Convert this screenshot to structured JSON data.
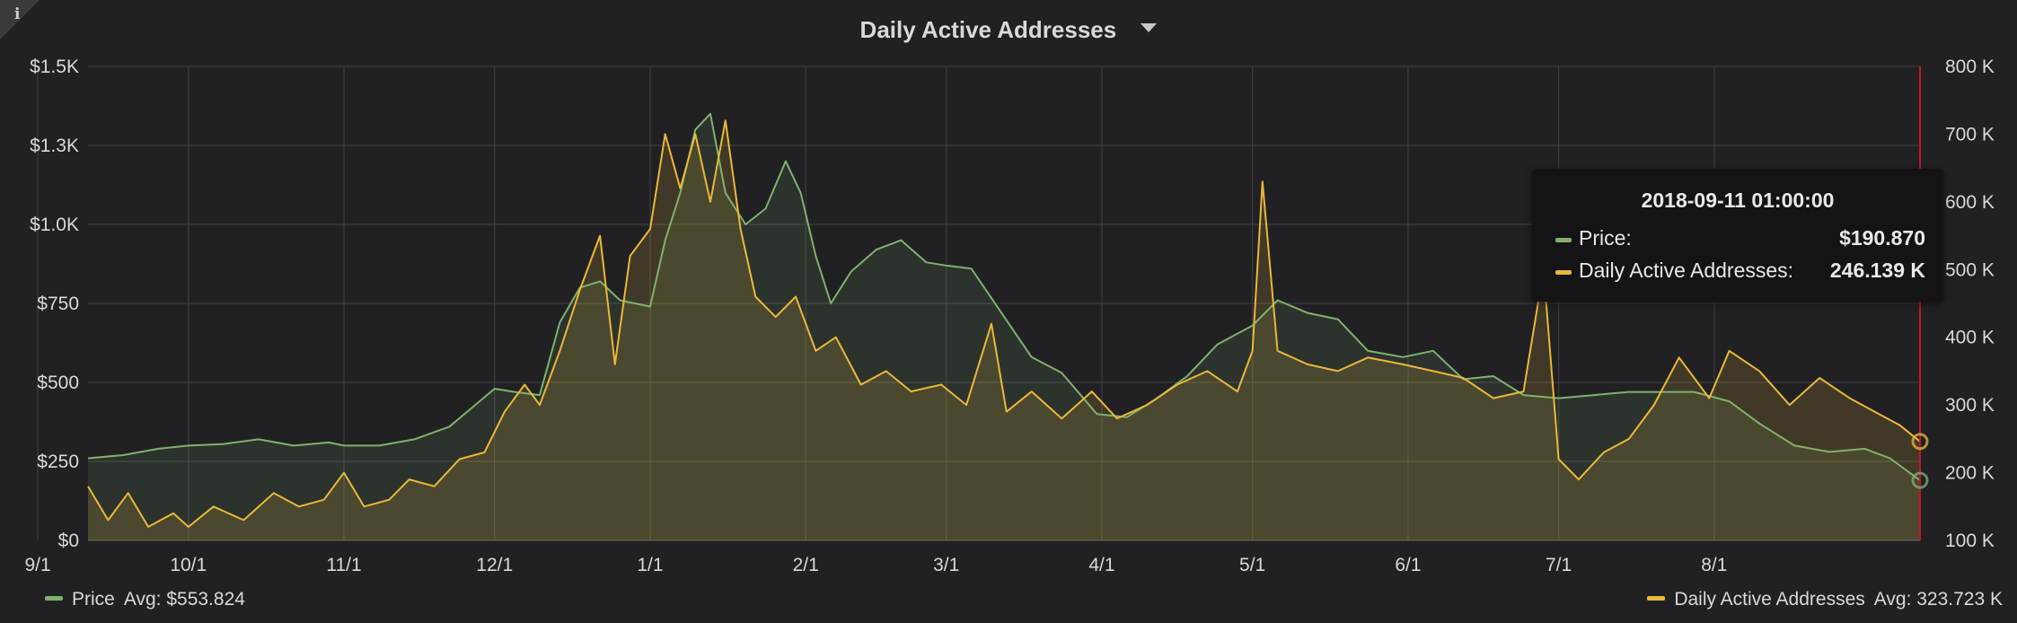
{
  "panel": {
    "title": "Daily Active Addresses",
    "info_icon": "i"
  },
  "tooltip": {
    "time": "2018-09-11 01:00:00",
    "rows": [
      {
        "label": "Price:",
        "value": "$190.870",
        "color": "#7eb26d"
      },
      {
        "label": "Daily Active Addresses:",
        "value": "246.139 K",
        "color": "#eab839"
      }
    ]
  },
  "legend": {
    "price": {
      "name": "Price",
      "avg": "Avg: $553.824",
      "color": "#7eb26d"
    },
    "daa": {
      "name": "Daily Active Addresses",
      "avg": "Avg: 323.723 K",
      "color": "#eab839"
    }
  },
  "chart_data": {
    "type": "line",
    "title": "Daily Active Addresses",
    "grid": true,
    "legend_position": "bottom",
    "x_ticks": [
      "10/1",
      "11/1",
      "12/1",
      "1/1",
      "2/1",
      "3/1",
      "4/1",
      "5/1",
      "6/1",
      "7/1",
      "8/1",
      "9/1"
    ],
    "x_range": [
      "2017-09-11",
      "2018-09-11"
    ],
    "left_axis": {
      "ticks": [
        "$0",
        "$250",
        "$500",
        "$750",
        "$1.0K",
        "$1.3K",
        "$1.5K"
      ],
      "range": [
        0,
        1500
      ]
    },
    "right_axis": {
      "ticks": [
        "100 K",
        "200 K",
        "300 K",
        "400 K",
        "500 K",
        "600 K",
        "700 K",
        "800 K"
      ],
      "range": [
        100000,
        800000
      ]
    },
    "series": [
      {
        "name": "Price",
        "axis": "left",
        "color": "#7eb26d",
        "points": [
          [
            "2017-09-11",
            260
          ],
          [
            "2017-09-18",
            270
          ],
          [
            "2017-09-25",
            290
          ],
          [
            "2017-10-01",
            300
          ],
          [
            "2017-10-08",
            305
          ],
          [
            "2017-10-15",
            320
          ],
          [
            "2017-10-22",
            300
          ],
          [
            "2017-10-29",
            310
          ],
          [
            "2017-11-01",
            300
          ],
          [
            "2017-11-08",
            300
          ],
          [
            "2017-11-15",
            320
          ],
          [
            "2017-11-22",
            360
          ],
          [
            "2017-11-28",
            440
          ],
          [
            "2017-12-01",
            480
          ],
          [
            "2017-12-05",
            470
          ],
          [
            "2017-12-10",
            460
          ],
          [
            "2017-12-14",
            690
          ],
          [
            "2017-12-18",
            800
          ],
          [
            "2017-12-22",
            820
          ],
          [
            "2017-12-26",
            760
          ],
          [
            "2018-01-01",
            740
          ],
          [
            "2018-01-04",
            950
          ],
          [
            "2018-01-07",
            1100
          ],
          [
            "2018-01-10",
            1300
          ],
          [
            "2018-01-13",
            1350
          ],
          [
            "2018-01-16",
            1100
          ],
          [
            "2018-01-20",
            1000
          ],
          [
            "2018-01-24",
            1050
          ],
          [
            "2018-01-28",
            1200
          ],
          [
            "2018-01-31",
            1100
          ],
          [
            "2018-02-03",
            900
          ],
          [
            "2018-02-06",
            750
          ],
          [
            "2018-02-10",
            850
          ],
          [
            "2018-02-15",
            920
          ],
          [
            "2018-02-20",
            950
          ],
          [
            "2018-02-25",
            880
          ],
          [
            "2018-03-01",
            870
          ],
          [
            "2018-03-06",
            860
          ],
          [
            "2018-03-12",
            720
          ],
          [
            "2018-03-18",
            580
          ],
          [
            "2018-03-24",
            530
          ],
          [
            "2018-03-31",
            400
          ],
          [
            "2018-04-06",
            390
          ],
          [
            "2018-04-12",
            450
          ],
          [
            "2018-04-18",
            520
          ],
          [
            "2018-04-24",
            620
          ],
          [
            "2018-05-01",
            680
          ],
          [
            "2018-05-06",
            760
          ],
          [
            "2018-05-12",
            720
          ],
          [
            "2018-05-18",
            700
          ],
          [
            "2018-05-24",
            600
          ],
          [
            "2018-05-31",
            580
          ],
          [
            "2018-06-06",
            600
          ],
          [
            "2018-06-12",
            510
          ],
          [
            "2018-06-18",
            520
          ],
          [
            "2018-06-24",
            460
          ],
          [
            "2018-07-01",
            450
          ],
          [
            "2018-07-08",
            460
          ],
          [
            "2018-07-15",
            470
          ],
          [
            "2018-07-22",
            470
          ],
          [
            "2018-07-28",
            470
          ],
          [
            "2018-08-04",
            440
          ],
          [
            "2018-08-10",
            370
          ],
          [
            "2018-08-17",
            300
          ],
          [
            "2018-08-24",
            280
          ],
          [
            "2018-08-31",
            290
          ],
          [
            "2018-09-05",
            260
          ],
          [
            "2018-09-11",
            190
          ]
        ]
      },
      {
        "name": "Daily Active Addresses",
        "axis": "right",
        "color": "#eab839",
        "points": [
          [
            "2017-09-11",
            180000
          ],
          [
            "2017-09-15",
            130000
          ],
          [
            "2017-09-19",
            170000
          ],
          [
            "2017-09-23",
            120000
          ],
          [
            "2017-09-28",
            140000
          ],
          [
            "2017-10-01",
            120000
          ],
          [
            "2017-10-06",
            150000
          ],
          [
            "2017-10-12",
            130000
          ],
          [
            "2017-10-18",
            170000
          ],
          [
            "2017-10-23",
            150000
          ],
          [
            "2017-10-28",
            160000
          ],
          [
            "2017-11-01",
            200000
          ],
          [
            "2017-11-05",
            150000
          ],
          [
            "2017-11-10",
            160000
          ],
          [
            "2017-11-14",
            190000
          ],
          [
            "2017-11-19",
            180000
          ],
          [
            "2017-11-24",
            220000
          ],
          [
            "2017-11-29",
            230000
          ],
          [
            "2017-12-03",
            290000
          ],
          [
            "2017-12-07",
            330000
          ],
          [
            "2017-12-10",
            300000
          ],
          [
            "2017-12-14",
            380000
          ],
          [
            "2017-12-18",
            470000
          ],
          [
            "2017-12-22",
            550000
          ],
          [
            "2017-12-25",
            360000
          ],
          [
            "2017-12-28",
            520000
          ],
          [
            "2018-01-01",
            560000
          ],
          [
            "2018-01-04",
            700000
          ],
          [
            "2018-01-07",
            620000
          ],
          [
            "2018-01-10",
            700000
          ],
          [
            "2018-01-13",
            600000
          ],
          [
            "2018-01-16",
            720000
          ],
          [
            "2018-01-19",
            560000
          ],
          [
            "2018-01-22",
            460000
          ],
          [
            "2018-01-26",
            430000
          ],
          [
            "2018-01-30",
            460000
          ],
          [
            "2018-02-03",
            380000
          ],
          [
            "2018-02-07",
            400000
          ],
          [
            "2018-02-12",
            330000
          ],
          [
            "2018-02-17",
            350000
          ],
          [
            "2018-02-22",
            320000
          ],
          [
            "2018-02-28",
            330000
          ],
          [
            "2018-03-05",
            300000
          ],
          [
            "2018-03-10",
            420000
          ],
          [
            "2018-03-13",
            290000
          ],
          [
            "2018-03-18",
            320000
          ],
          [
            "2018-03-24",
            280000
          ],
          [
            "2018-03-30",
            320000
          ],
          [
            "2018-04-04",
            280000
          ],
          [
            "2018-04-10",
            300000
          ],
          [
            "2018-04-16",
            330000
          ],
          [
            "2018-04-22",
            350000
          ],
          [
            "2018-04-28",
            320000
          ],
          [
            "2018-05-01",
            380000
          ],
          [
            "2018-05-03",
            630000
          ],
          [
            "2018-05-06",
            380000
          ],
          [
            "2018-05-12",
            360000
          ],
          [
            "2018-05-18",
            350000
          ],
          [
            "2018-05-24",
            370000
          ],
          [
            "2018-05-31",
            360000
          ],
          [
            "2018-06-06",
            350000
          ],
          [
            "2018-06-12",
            340000
          ],
          [
            "2018-06-18",
            310000
          ],
          [
            "2018-06-24",
            320000
          ],
          [
            "2018-06-28",
            500000
          ],
          [
            "2018-07-01",
            220000
          ],
          [
            "2018-07-05",
            190000
          ],
          [
            "2018-07-10",
            230000
          ],
          [
            "2018-07-15",
            250000
          ],
          [
            "2018-07-20",
            300000
          ],
          [
            "2018-07-25",
            370000
          ],
          [
            "2018-07-31",
            310000
          ],
          [
            "2018-08-04",
            380000
          ],
          [
            "2018-08-10",
            350000
          ],
          [
            "2018-08-16",
            300000
          ],
          [
            "2018-08-22",
            340000
          ],
          [
            "2018-08-28",
            310000
          ],
          [
            "2018-09-02",
            290000
          ],
          [
            "2018-09-07",
            270000
          ],
          [
            "2018-09-11",
            246139
          ]
        ]
      }
    ]
  }
}
